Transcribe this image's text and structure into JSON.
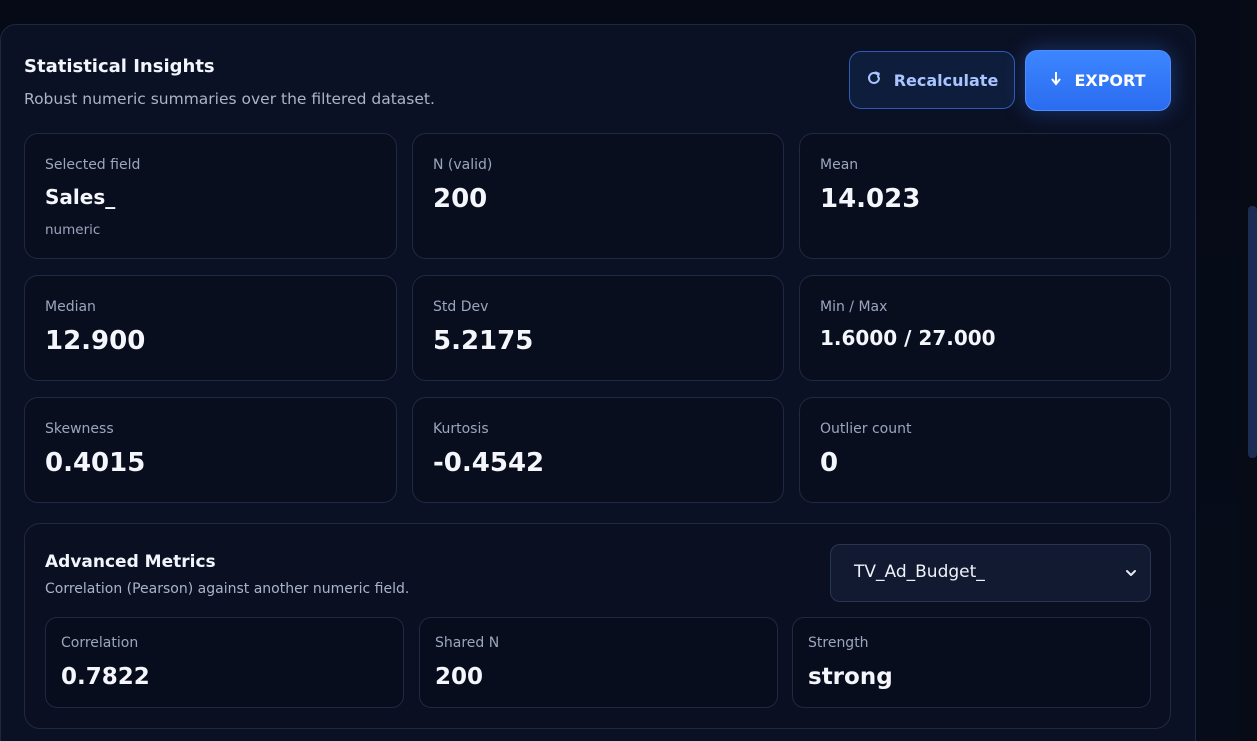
{
  "header": {
    "title": "Statistical Insights",
    "subtitle": "Robust numeric summaries over the filtered dataset.",
    "recalculate_label": "Recalculate",
    "export_label": "EXPORT"
  },
  "stats": {
    "selected_field": {
      "label": "Selected field",
      "value": "Sales_",
      "type": "numeric"
    },
    "n_valid": {
      "label": "N (valid)",
      "value": "200"
    },
    "mean": {
      "label": "Mean",
      "value": "14.023"
    },
    "median": {
      "label": "Median",
      "value": "12.900"
    },
    "std_dev": {
      "label": "Std Dev",
      "value": "5.2175"
    },
    "min_max": {
      "label": "Min / Max",
      "value": "1.6000 / 27.000"
    },
    "skewness": {
      "label": "Skewness",
      "value": "0.4015"
    },
    "kurtosis": {
      "label": "Kurtosis",
      "value": "-0.4542"
    },
    "outliers": {
      "label": "Outlier count",
      "value": "0"
    }
  },
  "advanced": {
    "title": "Advanced Metrics",
    "subtitle": "Correlation (Pearson) against another numeric field.",
    "compare_field": "TV_Ad_Budget_",
    "correlation": {
      "label": "Correlation",
      "value": "0.7822"
    },
    "shared_n": {
      "label": "Shared N",
      "value": "200"
    },
    "strength": {
      "label": "Strength",
      "value": "strong"
    }
  },
  "icons": {
    "recalculate": "refresh-icon",
    "export": "download-icon",
    "select": "chevron-down-icon"
  },
  "colors": {
    "accent": "#2f74ff",
    "background": "#070b17",
    "panel": "#0b1124"
  }
}
